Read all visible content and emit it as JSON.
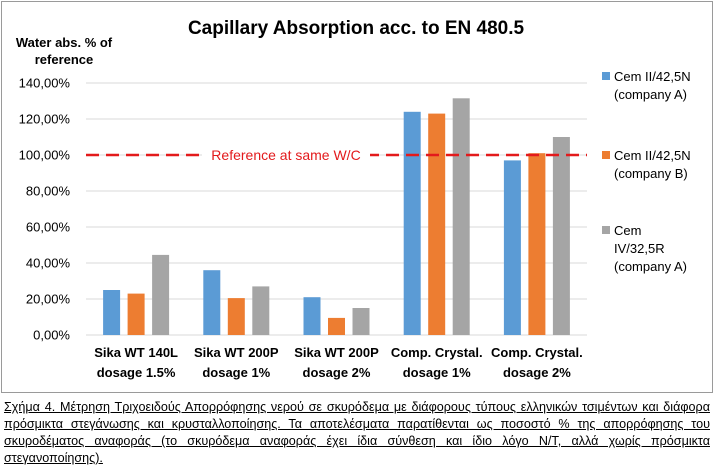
{
  "chart_data": {
    "type": "bar",
    "title": "Capillary Absorption acc. to EN 480.5",
    "ylabel_lines": [
      "Water abs. % of",
      "reference"
    ],
    "ylim": [
      0,
      140
    ],
    "yticks": [
      0,
      20,
      40,
      60,
      80,
      100,
      120,
      140
    ],
    "ytick_labels": [
      "0,00%",
      "20,00%",
      "40,00%",
      "60,00%",
      "80,00%",
      "100,00%",
      "120,00%",
      "140,00%"
    ],
    "categories": [
      [
        "Sika WT 140L",
        "dosage 1.5%"
      ],
      [
        "Sika WT 200P",
        "dosage 1%"
      ],
      [
        "Sika WT 200P",
        "dosage 2%"
      ],
      [
        "Comp. Crystal.",
        "dosage 1%"
      ],
      [
        "Comp. Crystal.",
        "dosage 2%"
      ]
    ],
    "series": [
      {
        "name": "Cem II/42,5N (company A)",
        "legend_lines": [
          "Cem II/42,5N",
          "(company A)"
        ],
        "color": "#5b9bd5",
        "values": [
          25,
          36,
          21,
          124,
          97
        ]
      },
      {
        "name": "Cem II/42,5N (company B)",
        "legend_lines": [
          "Cem II/42,5N",
          "(company B)"
        ],
        "color": "#ed7d31",
        "values": [
          23,
          20.5,
          9.5,
          123,
          101
        ]
      },
      {
        "name": "Cem IV/32,5R (company A)",
        "legend_lines": [
          "Cem",
          "IV/32,5R",
          "(company A)"
        ],
        "color": "#a5a5a5",
        "values": [
          44.5,
          27,
          15,
          131.5,
          110
        ]
      }
    ],
    "reference_line": {
      "value": 100,
      "label": "Reference at same W/C",
      "color": "#e31a1c",
      "style": "dashed"
    },
    "grid": true,
    "legend_position": "right"
  },
  "caption": "Σχήμα 4. Μέτρηση Τριχοειδούς Απορρόφησης νερού σε σκυρόδεμα με διάφορους τύπους ελληνικών τσιμέντων και διάφορα πρόσμικτα στεγάνωσης και κρυσταλλοποίησης. Τα αποτελέσματα παρατίθενται ως ποσοστό % της απορρόφησης του σκυροδέματος αναφοράς (το σκυρόδεμα αναφοράς έχει ίδια σύνθεση και ίδιο λόγο Ν/Τ, αλλά χωρίς πρόσμικτα στεγανοποίησης)."
}
